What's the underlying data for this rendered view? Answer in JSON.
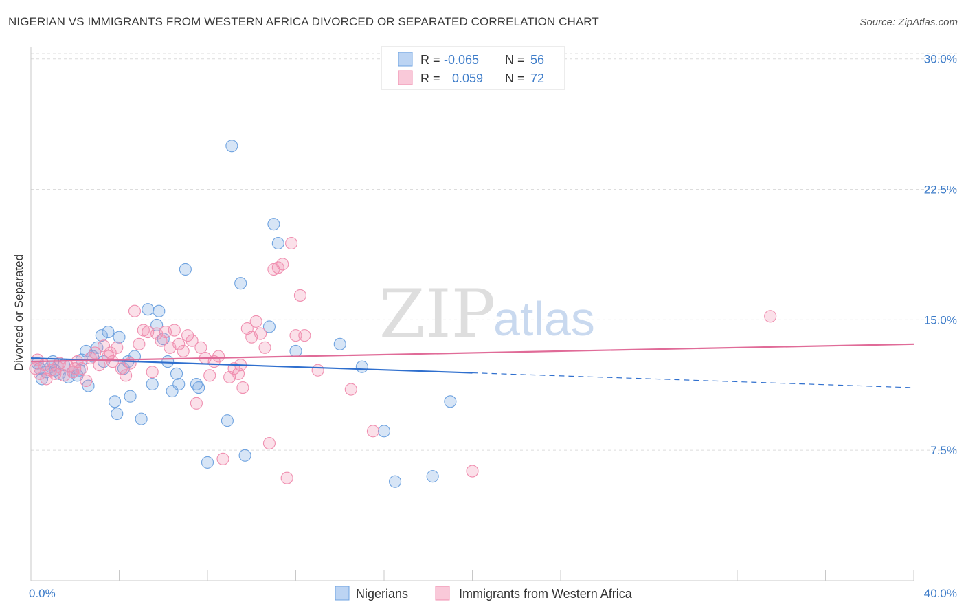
{
  "header": {
    "title": "NIGERIAN VS IMMIGRANTS FROM WESTERN AFRICA DIVORCED OR SEPARATED CORRELATION CHART",
    "source": "Source: ZipAtlas.com"
  },
  "watermark": {
    "zip": "ZIP",
    "atlas": "atlas"
  },
  "legend_top": {
    "rows": [
      {
        "r_label": "R =",
        "r_value": "-0.065",
        "n_label": "N =",
        "n_value": "56",
        "color": "#6fa3e0"
      },
      {
        "r_label": "R =",
        "r_value": "0.059",
        "n_label": "N =",
        "n_value": "72",
        "color": "#f08fb0"
      }
    ]
  },
  "legend_bottom": {
    "items": [
      {
        "label": "Nigerians",
        "color": "#6fa3e0"
      },
      {
        "label": "Immigrants from Western Africa",
        "color": "#f08fb0"
      }
    ]
  },
  "chart_data": {
    "type": "scatter",
    "title": "NIGERIAN VS IMMIGRANTS FROM WESTERN AFRICA DIVORCED OR SEPARATED CORRELATION CHART",
    "xlabel": "",
    "ylabel": "Divorced or Separated",
    "xlim": [
      0,
      40
    ],
    "ylim": [
      0,
      30.7
    ],
    "x_tick_labels": [
      "0.0%",
      "40.0%"
    ],
    "y_ticks": [
      7.5,
      15.0,
      22.5,
      30.0
    ],
    "y_tick_labels": [
      "7.5%",
      "15.0%",
      "22.5%",
      "30.0%"
    ],
    "grid": true,
    "legend_position": "top-center",
    "series": [
      {
        "name": "Nigerians",
        "color": "#6fa3e0",
        "trend": {
          "x": [
            0,
            40
          ],
          "y": [
            12.8,
            11.1
          ],
          "solid_until_x": 20
        },
        "points": [
          [
            0.3,
            12.5
          ],
          [
            0.5,
            11.6
          ],
          [
            0.7,
            12.0
          ],
          [
            0.9,
            12.3
          ],
          [
            1.1,
            12.1
          ],
          [
            1.3,
            11.9
          ],
          [
            1.5,
            12.4
          ],
          [
            1.7,
            11.7
          ],
          [
            1.9,
            12.0
          ],
          [
            2.1,
            11.8
          ],
          [
            2.3,
            12.7
          ],
          [
            2.5,
            13.2
          ],
          [
            2.6,
            11.2
          ],
          [
            2.8,
            12.9
          ],
          [
            3.0,
            13.4
          ],
          [
            3.2,
            14.1
          ],
          [
            3.5,
            14.3
          ],
          [
            3.8,
            10.3
          ],
          [
            3.9,
            9.6
          ],
          [
            4.2,
            12.2
          ],
          [
            4.5,
            10.6
          ],
          [
            4.4,
            12.6
          ],
          [
            4.7,
            12.9
          ],
          [
            5.0,
            9.3
          ],
          [
            5.3,
            15.6
          ],
          [
            5.5,
            11.3
          ],
          [
            5.7,
            14.7
          ],
          [
            5.8,
            15.5
          ],
          [
            6.0,
            13.9
          ],
          [
            6.2,
            12.6
          ],
          [
            6.4,
            10.9
          ],
          [
            6.6,
            11.9
          ],
          [
            6.7,
            11.3
          ],
          [
            7.0,
            17.9
          ],
          [
            7.5,
            11.3
          ],
          [
            7.6,
            11.1
          ],
          [
            8.0,
            6.8
          ],
          [
            8.9,
            9.2
          ],
          [
            9.1,
            25.0
          ],
          [
            9.5,
            17.1
          ],
          [
            9.7,
            7.2
          ],
          [
            10.8,
            14.6
          ],
          [
            11.0,
            20.5
          ],
          [
            11.2,
            19.4
          ],
          [
            12.0,
            13.2
          ],
          [
            14.0,
            13.6
          ],
          [
            15.0,
            12.3
          ],
          [
            16.0,
            8.6
          ],
          [
            16.5,
            5.7
          ],
          [
            18.2,
            6.0
          ],
          [
            19.0,
            10.3
          ],
          [
            1.0,
            12.6
          ],
          [
            2.2,
            12.1
          ],
          [
            4.0,
            14.0
          ],
          [
            0.4,
            12.2
          ],
          [
            3.3,
            12.6
          ]
        ]
      },
      {
        "name": "Immigrants from Western Africa",
        "color": "#f08fb0",
        "trend": {
          "x": [
            0,
            40
          ],
          "y": [
            12.6,
            13.6
          ]
        },
        "points": [
          [
            0.2,
            12.2
          ],
          [
            0.4,
            11.9
          ],
          [
            0.6,
            12.4
          ],
          [
            0.7,
            11.6
          ],
          [
            0.9,
            12.1
          ],
          [
            1.1,
            11.9
          ],
          [
            1.3,
            12.5
          ],
          [
            1.5,
            11.8
          ],
          [
            1.7,
            12.3
          ],
          [
            1.9,
            12.0
          ],
          [
            2.1,
            12.6
          ],
          [
            2.3,
            12.2
          ],
          [
            2.5,
            11.5
          ],
          [
            2.7,
            12.8
          ],
          [
            2.9,
            13.1
          ],
          [
            3.1,
            12.4
          ],
          [
            3.3,
            13.5
          ],
          [
            3.5,
            12.9
          ],
          [
            3.7,
            12.6
          ],
          [
            3.9,
            13.4
          ],
          [
            4.1,
            12.2
          ],
          [
            4.3,
            11.8
          ],
          [
            4.5,
            12.5
          ],
          [
            4.7,
            15.5
          ],
          [
            4.9,
            13.6
          ],
          [
            5.1,
            14.4
          ],
          [
            5.3,
            14.3
          ],
          [
            5.5,
            12.0
          ],
          [
            5.7,
            14.2
          ],
          [
            5.9,
            13.8
          ],
          [
            6.1,
            14.3
          ],
          [
            6.3,
            13.4
          ],
          [
            6.5,
            14.4
          ],
          [
            6.7,
            13.6
          ],
          [
            6.9,
            13.2
          ],
          [
            7.1,
            14.1
          ],
          [
            7.3,
            13.8
          ],
          [
            7.5,
            10.2
          ],
          [
            7.7,
            13.4
          ],
          [
            7.9,
            12.8
          ],
          [
            8.1,
            11.8
          ],
          [
            8.3,
            12.6
          ],
          [
            8.5,
            12.9
          ],
          [
            8.7,
            7.0
          ],
          [
            9.0,
            11.7
          ],
          [
            9.2,
            12.2
          ],
          [
            9.4,
            11.9
          ],
          [
            9.6,
            11.1
          ],
          [
            9.8,
            14.5
          ],
          [
            10.0,
            14.0
          ],
          [
            10.2,
            14.9
          ],
          [
            10.4,
            14.2
          ],
          [
            10.6,
            13.4
          ],
          [
            10.8,
            7.9
          ],
          [
            11.0,
            17.9
          ],
          [
            11.2,
            18.0
          ],
          [
            11.4,
            18.2
          ],
          [
            11.6,
            5.9
          ],
          [
            11.8,
            19.4
          ],
          [
            12.0,
            14.1
          ],
          [
            12.2,
            16.4
          ],
          [
            12.4,
            14.1
          ],
          [
            13.0,
            12.1
          ],
          [
            14.5,
            11.0
          ],
          [
            15.5,
            8.6
          ],
          [
            20.0,
            6.3
          ],
          [
            33.5,
            15.2
          ],
          [
            0.3,
            12.7
          ],
          [
            1.2,
            12.3
          ],
          [
            2.0,
            12.2
          ],
          [
            3.6,
            13.1
          ],
          [
            9.5,
            12.4
          ]
        ]
      }
    ]
  }
}
